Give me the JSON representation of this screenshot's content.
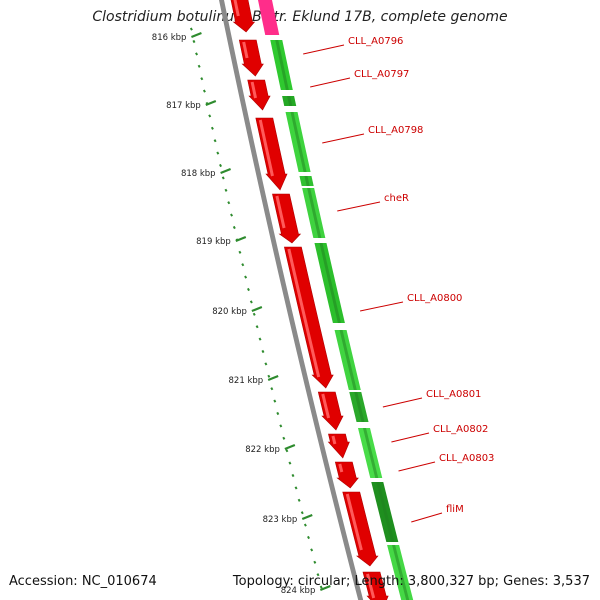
{
  "title": "Clostridium botulinum B str. Eklund 17B, complete genome",
  "footer": {
    "accession": "Accession: NC_010674",
    "topology": "Topology: circular; Length: 3,800,327 bp; Genes: 3,537"
  },
  "ticks": [
    "816 kbp",
    "817 kbp",
    "818 kbp",
    "819 kbp",
    "820 kbp",
    "821 kbp",
    "822 kbp",
    "823 kbp",
    "824 kbp"
  ],
  "genes": [
    "CLL_A0796",
    "CLL_A0797",
    "CLL_A0798",
    "cheR",
    "CLL_A0800",
    "CLL_A0801",
    "CLL_A0802",
    "CLL_A0803",
    "fliM"
  ],
  "colors": {
    "forward_strand": "#e00000",
    "reverse_strand": "#33cc33",
    "highlight": "#ff2d8a",
    "backbone": "#8a8a8a",
    "tick": "#2e8b2e",
    "label": "#cc0000"
  }
}
